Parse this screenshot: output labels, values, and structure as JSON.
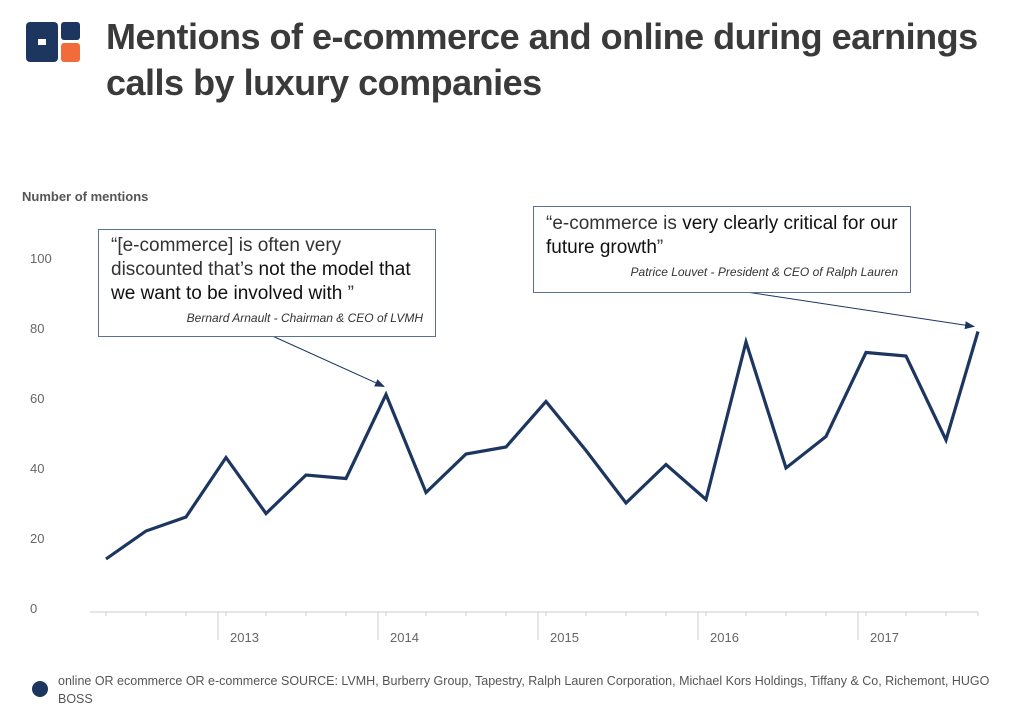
{
  "header": {
    "title": "Mentions of e-commerce and online during earnings calls by luxury companies",
    "logo_colors": {
      "left": "#1c3660",
      "right": "#f26b3a"
    }
  },
  "annotations": [
    {
      "quote_normal": "“[e-commerce] is often very discounted that’s ",
      "quote_bold": "not the model that we want to be involved with ",
      "quote_end": "”",
      "source": "Bernard Arnault - Chairman & CEO of LVMH"
    },
    {
      "quote_normal": "“e-commerce is ",
      "quote_bold": "very clearly critical for our future growth",
      "quote_end": "”",
      "source": "Patrice Louvet - President & CEO of Ralph Lauren"
    }
  ],
  "legend": {
    "text": "online OR ecommerce OR e-commerce SOURCE: LVMH, Burberry Group, Tapestry, Ralph Lauren Corporation, Michael Kors Holdings, Tiffany & Co, Richemont, HUGO BOSS"
  },
  "colors": {
    "line": "#1c3660",
    "axis": "#cccccc",
    "tick_text": "#666666"
  },
  "chart_data": {
    "type": "line",
    "title": "Mentions of e-commerce and online during earnings calls by luxury companies",
    "ylabel": "Number of mentions",
    "xlabel": "",
    "ylim": [
      0,
      100
    ],
    "yticks": [
      0,
      20,
      40,
      60,
      80,
      100
    ],
    "x_tick_labels": [
      "2013",
      "2014",
      "2015",
      "2016",
      "2017"
    ],
    "x_tick_positions": [
      2013.0,
      2014.0,
      2015.0,
      2016.0,
      2017.0
    ],
    "xlim": [
      2012.2,
      2017.75
    ],
    "series": [
      {
        "name": "online OR ecommerce OR e-commerce",
        "x": [
          2012.3,
          2012.55,
          2012.8,
          2013.05,
          2013.3,
          2013.55,
          2013.8,
          2014.05,
          2014.3,
          2014.55,
          2014.8,
          2015.05,
          2015.3,
          2015.55,
          2015.8,
          2016.05,
          2016.3,
          2016.55,
          2016.8,
          2017.05,
          2017.3,
          2017.55,
          2017.75
        ],
        "values": [
          14,
          22,
          26,
          43,
          27,
          38,
          37,
          61,
          33,
          44,
          46,
          59,
          45,
          30,
          41,
          31,
          76,
          40,
          49,
          73,
          72,
          48,
          79
        ]
      }
    ],
    "annotation_points": [
      {
        "x": 2014.05,
        "y": 61
      },
      {
        "x": 2017.75,
        "y": 79
      }
    ]
  }
}
